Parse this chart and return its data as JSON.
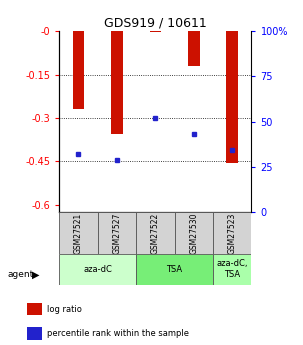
{
  "title": "GDS919 / 10611",
  "categories": [
    "GSM27521",
    "GSM27527",
    "GSM27522",
    "GSM27530",
    "GSM27523"
  ],
  "bar_values": [
    -0.27,
    -0.355,
    -0.005,
    -0.12,
    -0.455
  ],
  "percentile_values": [
    -0.425,
    -0.445,
    -0.3,
    -0.355,
    -0.41
  ],
  "bar_color": "#cc1100",
  "marker_color": "#2222cc",
  "ylim_left": [
    -0.625,
    0.0
  ],
  "yticks_left": [
    0,
    -0.15,
    -0.3,
    -0.45,
    -0.6
  ],
  "ytick_labels_left": [
    "-0",
    "-0.15",
    "-0.3",
    "-0.45",
    "-0.6"
  ],
  "yticks_right_pct": [
    100,
    75,
    50,
    25,
    0
  ],
  "ytick_labels_right": [
    "100%",
    "75",
    "50",
    "25",
    "0"
  ],
  "agent_groups": [
    {
      "label": "aza-dC",
      "start": 0,
      "end": 2,
      "color": "#ccffcc"
    },
    {
      "label": "TSA",
      "start": 2,
      "end": 4,
      "color": "#77ee77"
    },
    {
      "label": "aza-dC,\nTSA",
      "start": 4,
      "end": 5,
      "color": "#aaffaa"
    }
  ],
  "legend_red_label": "log ratio",
  "legend_blue_label": "percentile rank within the sample",
  "bar_width": 0.3,
  "agent_label": "agent",
  "agent_arrow": "▶",
  "label_box_color": "#d3d3d3",
  "grid_ticks": [
    -0.15,
    -0.3,
    -0.45
  ]
}
